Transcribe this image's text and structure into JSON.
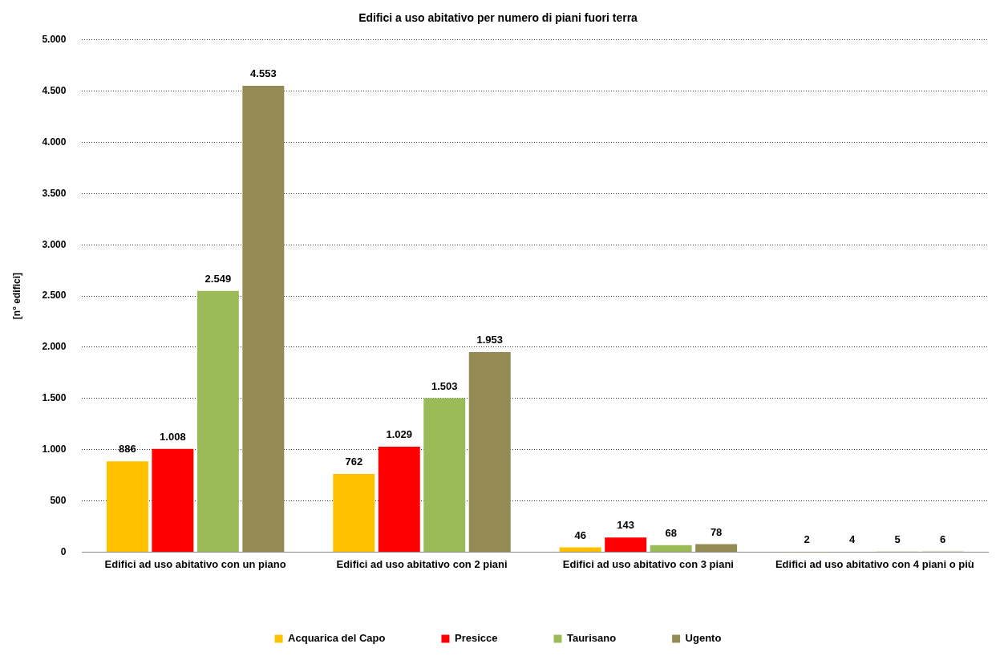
{
  "chart_data": {
    "type": "bar",
    "title": "Edifici a uso abitativo per numero di piani fuori terra",
    "ylabel": "[n° edifici]",
    "categories": [
      "Edifici ad uso abitativo con un piano",
      "Edifici ad uso abitativo con 2 piani",
      "Edifici ad uso abitativo con 3 piani",
      "Edifici ad uso abitativo con 4 piani o più"
    ],
    "series": [
      {
        "name": "Acquarica del Capo",
        "color": "#ffc000",
        "values": [
          886,
          762,
          46,
          2
        ],
        "value_labels": [
          "886",
          "762",
          "46",
          "2"
        ]
      },
      {
        "name": "Presicce",
        "color": "#ff0000",
        "values": [
          1008,
          1029,
          143,
          4
        ],
        "value_labels": [
          "1.008",
          "1.029",
          "143",
          "4"
        ]
      },
      {
        "name": "Taurisano",
        "color": "#9bbb59",
        "values": [
          2549,
          1503,
          68,
          5
        ],
        "value_labels": [
          "2.549",
          "1.503",
          "68",
          "5"
        ]
      },
      {
        "name": "Ugento",
        "color": "#948a54",
        "values": [
          4553,
          1953,
          78,
          6
        ],
        "value_labels": [
          "4.553",
          "1.953",
          "78",
          "6"
        ]
      }
    ],
    "ylim": [
      0,
      5000
    ],
    "yticks": [
      0,
      {
        "value": 500,
        "label": "500"
      },
      {
        "value": 1000,
        "label": "1.000"
      },
      {
        "value": 1500,
        "label": "1.500"
      },
      {
        "value": 2000,
        "label": "2.000"
      },
      {
        "value": 2500,
        "label": "2.500"
      },
      {
        "value": 3000,
        "label": "3.000"
      },
      {
        "value": 3500,
        "label": "3.500"
      },
      {
        "value": 4000,
        "label": "4.000"
      },
      {
        "value": 4500,
        "label": "4.500"
      },
      {
        "value": 5000,
        "label": "5.000"
      }
    ],
    "grid": "y",
    "legend": "bottom"
  }
}
